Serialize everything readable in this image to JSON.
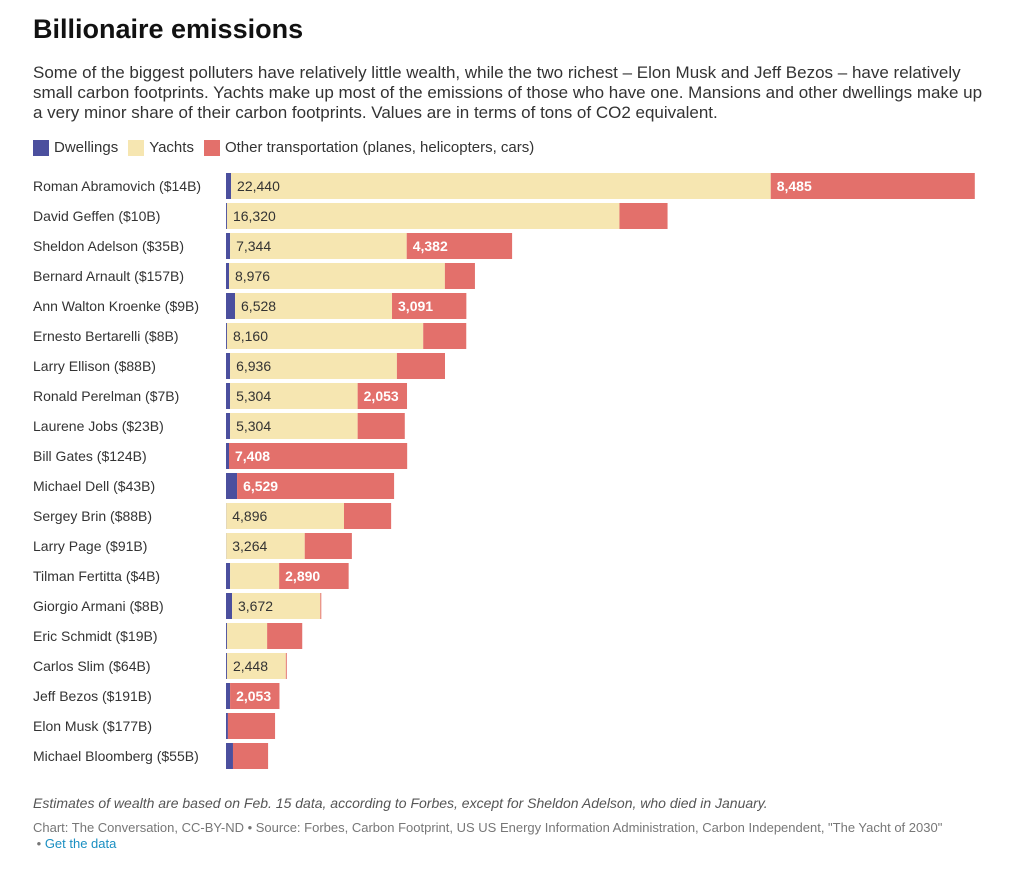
{
  "header": {
    "title": "Billionaire emissions",
    "subtitle": "Some of the biggest polluters have relatively little wealth, while the two richest – Elon Musk and Jeff Bezos – have relatively small carbon footprints. Yachts make up most of the emissions of those who have one. Mansions and other dwellings make up a very minor share of their carbon footprints. Values are in terms of tons of CO2 equivalent."
  },
  "footer": {
    "note": "Estimates of wealth are based on Feb. 15 data, according to Forbes, except for Sheldon Adelson, who died in January.",
    "source": "Chart: The Conversation, CC-BY-ND • Source: Forbes, Carbon Footprint, US US Energy Information Administration, Carbon Independent, \"The Yacht of 2030\"",
    "bullet": "•",
    "get_data": "Get the data"
  },
  "chart_data": {
    "type": "bar",
    "orientation": "horizontal",
    "stacked": true,
    "legend_position": "top-left",
    "grid": false,
    "categories": [
      "Roman Abramovich ($14B)",
      "David Geffen ($10B)",
      "Sheldon Adelson ($35B)",
      "Bernard Arnault ($157B)",
      "Ann Walton Kroenke ($9B)",
      "Ernesto Bertarelli ($8B)",
      "Larry Ellison ($88B)",
      "Ronald Perelman ($7B)",
      "Laurene Jobs ($23B)",
      "Bill Gates ($124B)",
      "Michael Dell ($43B)",
      "Sergey Brin ($88B)",
      "Larry Page ($91B)",
      "Tilman Fertitta ($4B)",
      "Giorgio Armani ($8B)",
      "Eric Schmidt ($19B)",
      "Carlos Slim ($64B)",
      "Jeff Bezos ($191B)",
      "Elon Musk ($177B)",
      "Michael Bloomberg ($55B)"
    ],
    "series": [
      {
        "name": "Dwellings",
        "color": "#4b4f9e",
        "text_color": "#fff",
        "values": [
          210,
          40,
          170,
          125,
          375,
          40,
          170,
          170,
          170,
          125,
          460,
          10,
          10,
          170,
          250,
          40,
          40,
          170,
          80,
          290
        ],
        "labels": [
          "",
          "",
          "",
          "",
          "",
          "",
          "",
          "",
          "",
          "",
          "",
          "",
          "",
          "",
          "",
          "",
          "",
          "",
          "",
          ""
        ]
      },
      {
        "name": "Yachts",
        "color": "#f6e6b1",
        "text_color": "#333",
        "values": [
          22440,
          16320,
          7344,
          8976,
          6528,
          8160,
          6936,
          5304,
          5304,
          0,
          0,
          4896,
          3264,
          2040,
          3672,
          1670,
          2448,
          0,
          0,
          0
        ],
        "labels": [
          "22,440",
          "16,320",
          "7,344",
          "8,976",
          "6,528",
          "8,160",
          "6,936",
          "5,304",
          "5,304",
          "",
          "",
          "4,896",
          "3,264",
          "",
          "3,672",
          "",
          "2,448",
          "",
          "",
          ""
        ]
      },
      {
        "name": "Other transportation (planes, helicopters, cars)",
        "color": "#e3706b",
        "text_color": "#fff",
        "values": [
          8485,
          2000,
          4382,
          1250,
          3091,
          1790,
          2000,
          2053,
          1960,
          7408,
          6529,
          1960,
          1960,
          2890,
          40,
          1460,
          40,
          2053,
          1960,
          1460
        ],
        "labels": [
          "8,485",
          "",
          "4,382",
          "",
          "3,091",
          "",
          "",
          "2,053",
          "",
          "7,408",
          "6,529",
          "",
          "",
          "2,890",
          "",
          "",
          "",
          "2,053",
          "",
          ""
        ]
      }
    ]
  }
}
